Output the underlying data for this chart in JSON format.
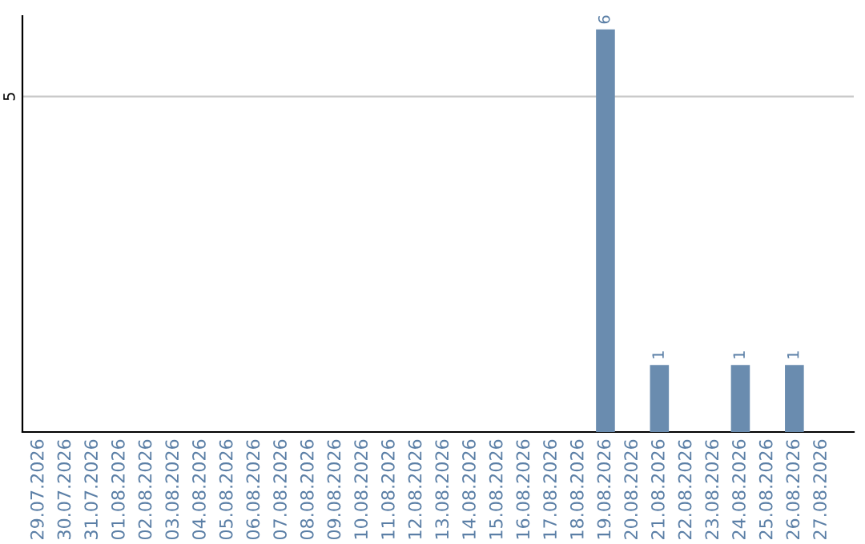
{
  "chart_data": {
    "type": "bar",
    "categories": [
      "29.07.2026",
      "30.07.2026",
      "31.07.2026",
      "01.08.2026",
      "02.08.2026",
      "03.08.2026",
      "04.08.2026",
      "05.08.2026",
      "06.08.2026",
      "07.08.2026",
      "08.08.2026",
      "09.08.2026",
      "10.08.2026",
      "11.08.2026",
      "12.08.2026",
      "13.08.2026",
      "14.08.2026",
      "15.08.2026",
      "16.08.2026",
      "17.08.2026",
      "18.08.2026",
      "19.08.2026",
      "20.08.2026",
      "21.08.2026",
      "22.08.2026",
      "23.08.2026",
      "24.08.2026",
      "25.08.2026",
      "26.08.2026",
      "27.08.2026"
    ],
    "values": [
      null,
      null,
      null,
      null,
      null,
      null,
      null,
      null,
      null,
      null,
      null,
      null,
      null,
      null,
      null,
      null,
      null,
      null,
      null,
      null,
      null,
      6,
      null,
      1,
      null,
      null,
      1,
      null,
      1,
      null
    ],
    "color": "#6a8caf",
    "ylim": [
      0,
      6.2
    ],
    "yticks": [
      5
    ],
    "grid": "y",
    "data_labels": true
  }
}
